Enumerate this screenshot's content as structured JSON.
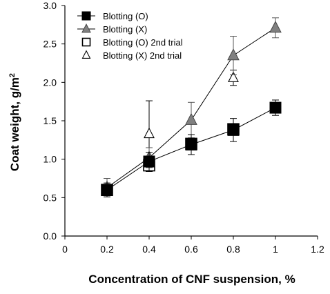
{
  "chart_data": {
    "type": "scatter",
    "title": "",
    "xlabel": "Concentration of CNF suspension, %",
    "ylabel_main": "Coat weight, g/m",
    "ylabel_sup": "2",
    "xlim": [
      0,
      1.2
    ],
    "ylim": [
      0.0,
      3.0
    ],
    "xticks": [
      "0",
      "0.2",
      "0.4",
      "0.6",
      "0.8",
      "1",
      "1.2"
    ],
    "yticks": [
      "0.0",
      "0.5",
      "1.0",
      "1.5",
      "2.0",
      "2.5",
      "3.0"
    ],
    "grid": false,
    "legend_position": "top-left",
    "series": [
      {
        "name": "Blotting (O)",
        "marker": "square-filled",
        "line": true,
        "color": "#000000",
        "x": [
          0.2,
          0.4,
          0.6,
          0.8,
          1.0
        ],
        "y": [
          0.6,
          0.97,
          1.19,
          1.38,
          1.67
        ],
        "err": [
          0.09,
          0.12,
          0.13,
          0.15,
          0.1
        ]
      },
      {
        "name": "Blotting (X)",
        "marker": "triangle-filled",
        "line": true,
        "color": "#808080",
        "x": [
          0.2,
          0.4,
          0.6,
          0.8,
          1.0
        ],
        "y": [
          0.63,
          1.02,
          1.51,
          2.35,
          2.71
        ],
        "err": [
          0.12,
          0.13,
          0.23,
          0.25,
          0.13
        ]
      },
      {
        "name": "Blotting (O) 2nd trial",
        "marker": "square-open",
        "line": false,
        "color": "#000000",
        "x": [
          0.2,
          0.4,
          0.6,
          0.8
        ],
        "y": [
          0.6,
          0.92,
          1.2,
          1.39
        ],
        "err": [
          0.0,
          0.08,
          0.0,
          0.0
        ]
      },
      {
        "name": "Blotting (X) 2nd trial",
        "marker": "triangle-open",
        "line": false,
        "color": "#000000",
        "x": [
          0.4,
          0.8
        ],
        "y": [
          1.33,
          2.06
        ],
        "err": [
          0.43,
          0.1
        ]
      }
    ]
  }
}
